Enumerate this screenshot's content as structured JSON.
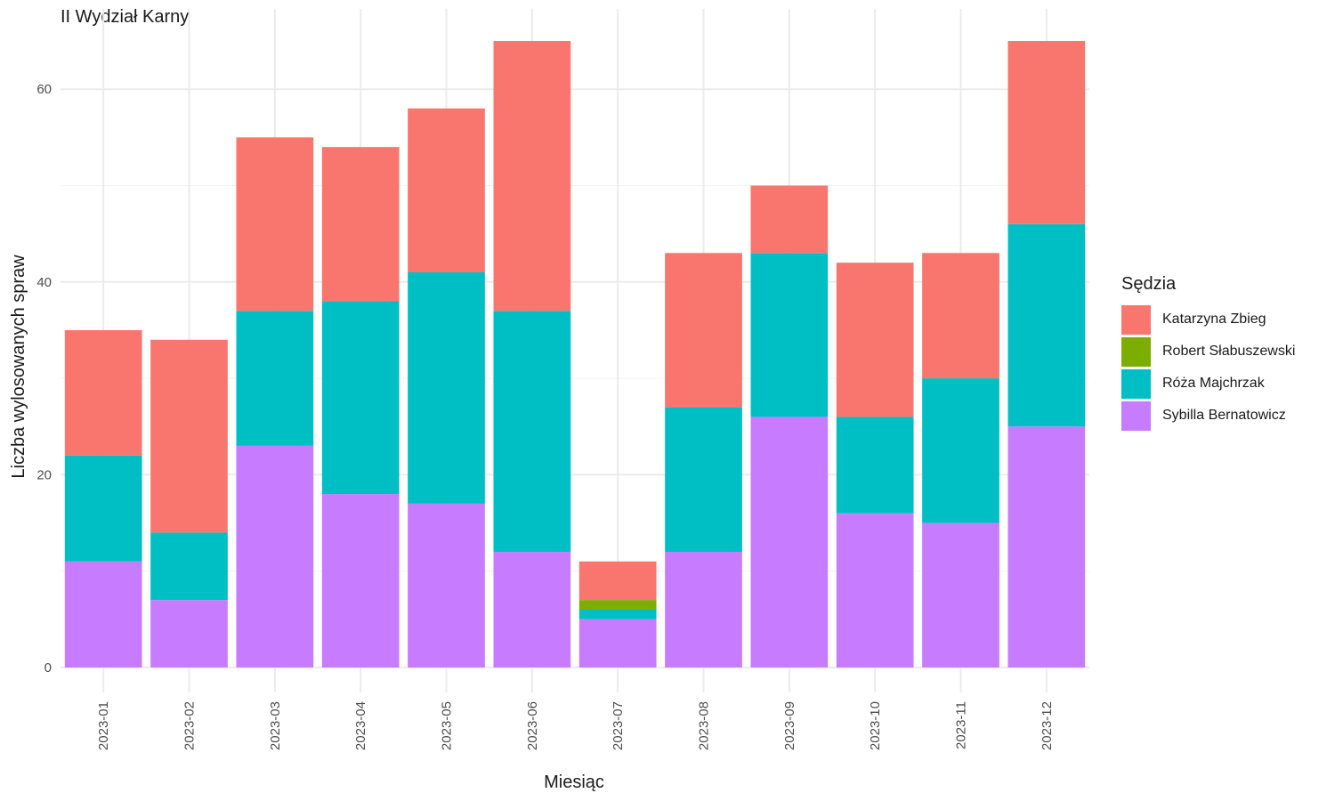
{
  "chart_data": {
    "type": "bar",
    "stacked": true,
    "title": "II Wydział Karny",
    "xlabel": "Miesiąc",
    "ylabel": "Liczba wylosowanych spraw",
    "ylim": [
      0,
      67
    ],
    "yticks": [
      0,
      20,
      40,
      60
    ],
    "grid": true,
    "legend_title": "Sędzia",
    "legend_position": "right",
    "categories": [
      "2023-01",
      "2023-02",
      "2023-03",
      "2023-04",
      "2023-05",
      "2023-06",
      "2023-07",
      "2023-08",
      "2023-09",
      "2023-10",
      "2023-11",
      "2023-12"
    ],
    "series": [
      {
        "name": "Katarzyna Zbieg",
        "color": "#F8766D",
        "values": [
          13,
          20,
          18,
          16,
          17,
          28,
          4,
          16,
          7,
          16,
          13,
          19
        ]
      },
      {
        "name": "Robert Słabuszewski",
        "color": "#7CAE00",
        "values": [
          0,
          0,
          0,
          0,
          0,
          0,
          1,
          0,
          0,
          0,
          0,
          0
        ]
      },
      {
        "name": "Róża Majchrzak",
        "color": "#00BFC4",
        "values": [
          11,
          7,
          14,
          20,
          24,
          25,
          1,
          15,
          17,
          10,
          15,
          21
        ]
      },
      {
        "name": "Sybilla Bernatowicz",
        "color": "#C77CFF",
        "values": [
          11,
          7,
          23,
          18,
          17,
          12,
          5,
          12,
          26,
          16,
          15,
          25
        ]
      }
    ]
  }
}
